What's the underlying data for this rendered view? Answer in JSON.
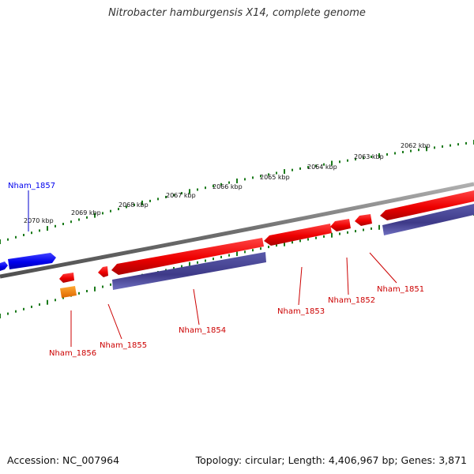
{
  "title": "Nitrobacter hamburgensis X14, complete genome",
  "footer": {
    "accession": "Accession: NC_007964",
    "summary": "Topology: circular; Length: 4,406,967 bp; Genes: 3,871"
  },
  "ruler": {
    "labels": [
      "2062 kbp",
      "2063 kbp",
      "2064 kbp",
      "2065 kbp",
      "2066 kbp",
      "2067 kbp",
      "2068 kbp",
      "2069 kbp",
      "2070 kbp"
    ]
  },
  "genes": {
    "forward": [
      {
        "label": "Nham_1857",
        "color": "#0000ee"
      }
    ],
    "reverse": [
      {
        "label": "Nham_1851",
        "color": "#cc0000"
      },
      {
        "label": "Nham_1852",
        "color": "#cc0000"
      },
      {
        "label": "Nham_1853",
        "color": "#cc0000"
      },
      {
        "label": "Nham_1854",
        "color": "#cc0000"
      },
      {
        "label": "Nham_1855",
        "color": "#cc0000"
      },
      {
        "label": "Nham_1856",
        "color": "#cc0000"
      }
    ]
  },
  "colors": {
    "forward_gene": "#1a1aff",
    "reverse_gene": "#ff1a1a",
    "cds_track": "#4a4499",
    "rna_feature": "#ff8c00",
    "tick_marks": "#1a7a1a",
    "backbone": "#808080"
  }
}
